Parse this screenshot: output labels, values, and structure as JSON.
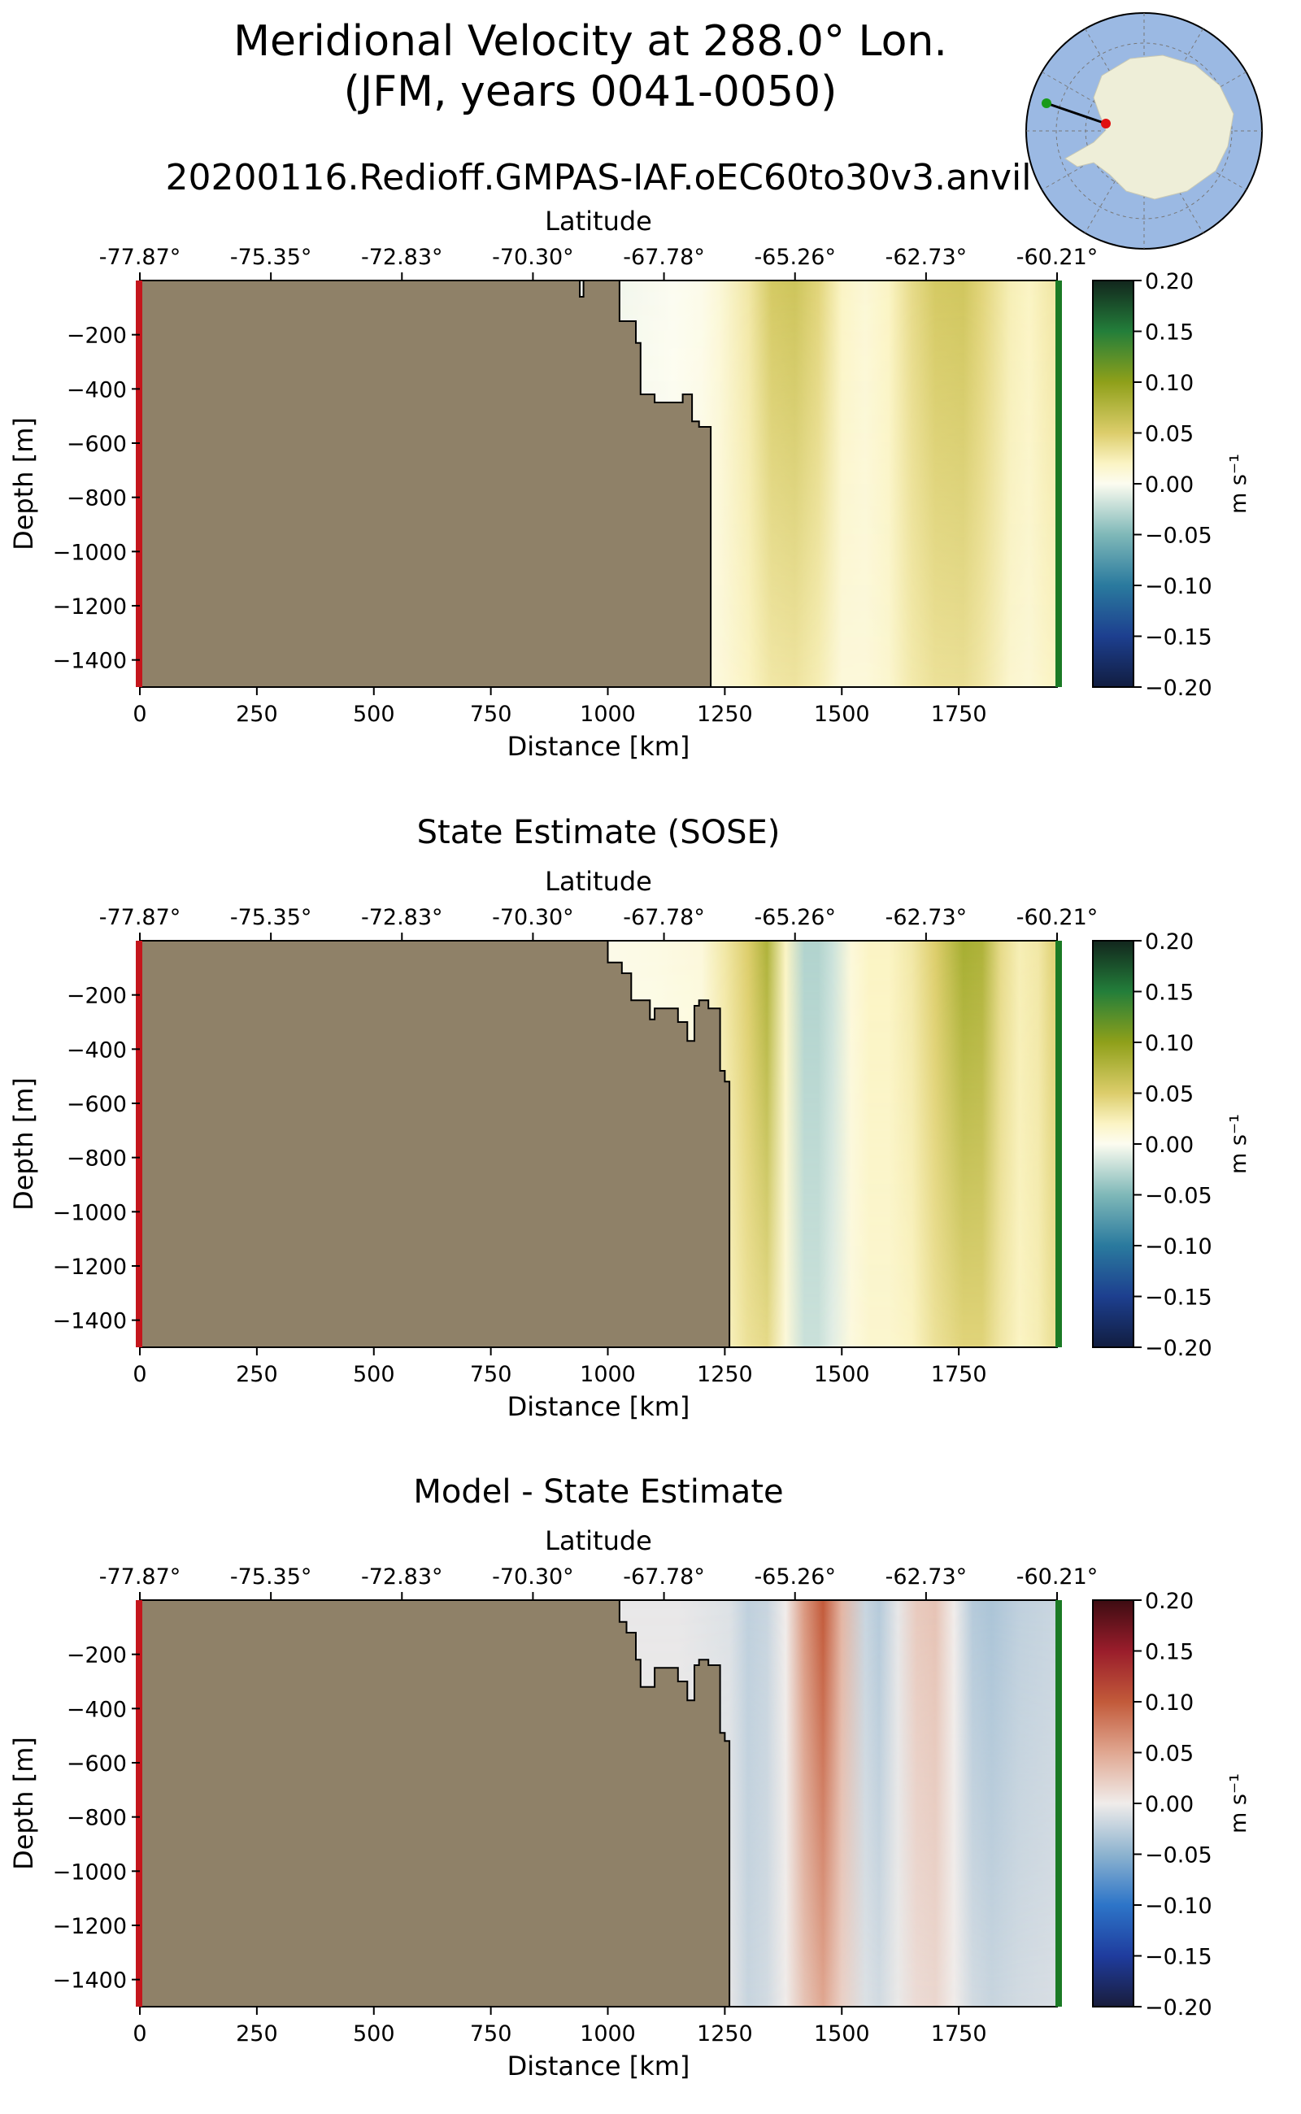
{
  "title_line1": "Meridional Velocity at 288.0° Lon.",
  "title_line2": "(JFM, years 0041-0050)",
  "run_name": "20200116.Redioff.GMPAS-IAF.oEC60to30v3.anvil",
  "inset_map": {
    "type": "polar-stereographic",
    "region": "Antarctica",
    "ocean_color": "#9bb9e3",
    "land_color": "#eeeed8",
    "transect_start_marker": "#1a9a1a",
    "transect_end_marker": "#e01010"
  },
  "chart_data": [
    {
      "type": "heatmap",
      "panel": "model",
      "title": "",
      "xlabel": "Distance [km]",
      "ylabel": "Depth [m]",
      "top_axis_label": "Latitude",
      "xlim": [
        0,
        1960
      ],
      "ylim": [
        -1500,
        0
      ],
      "xticks": [
        0,
        250,
        500,
        750,
        1000,
        1250,
        1500,
        1750
      ],
      "yticks": [
        -200,
        -400,
        -600,
        -800,
        -1000,
        -1200,
        -1400
      ],
      "top_ticks": [
        "-77.87°",
        "-75.35°",
        "-72.83°",
        "-70.30°",
        "-67.78°",
        "-65.26°",
        "-62.73°",
        "-60.21°"
      ],
      "top_tick_positions_km": [
        0,
        280,
        560,
        840,
        1120,
        1400,
        1680,
        1960
      ],
      "colorbar": {
        "label": "m s⁻¹",
        "min": -0.2,
        "max": 0.2,
        "ticks": [
          "0.20",
          "0.15",
          "0.10",
          "0.05",
          "0.00",
          "−0.05",
          "−0.10",
          "−0.15",
          "−0.20"
        ],
        "colormap": "delta"
      },
      "land_color": "#8f8168",
      "bathymetry": {
        "distance_km": [
          0,
          940,
          940,
          948,
          948,
          1025,
          1025,
          1060,
          1060,
          1070,
          1070,
          1100,
          1100,
          1160,
          1160,
          1180,
          1180,
          1195,
          1195,
          1220,
          1220
        ],
        "depth_m": [
          0,
          0,
          -60,
          -60,
          0,
          0,
          -150,
          -150,
          -230,
          -230,
          -420,
          -420,
          -450,
          -450,
          -420,
          -420,
          -520,
          -520,
          -540,
          -540,
          -1500
        ]
      },
      "velocity_profile": {
        "distance_km": [
          1030,
          1080,
          1140,
          1200,
          1240,
          1300,
          1350,
          1400,
          1450,
          1500,
          1550,
          1600,
          1650,
          1700,
          1760,
          1800,
          1860,
          1900,
          1950
        ],
        "surface_m_s": [
          -0.004,
          -0.002,
          0.0,
          0.003,
          0.012,
          0.03,
          0.055,
          0.06,
          0.045,
          0.02,
          0.012,
          0.02,
          0.04,
          0.055,
          0.058,
          0.045,
          0.025,
          0.02,
          0.03
        ],
        "deep_m_s": [
          0.0,
          0.0,
          0.0,
          0.005,
          0.01,
          0.02,
          0.03,
          0.032,
          0.025,
          0.01,
          0.01,
          0.015,
          0.028,
          0.035,
          0.036,
          0.03,
          0.015,
          0.012,
          0.02
        ]
      }
    },
    {
      "type": "heatmap",
      "panel": "sose",
      "title": "State Estimate (SOSE)",
      "xlabel": "Distance [km]",
      "ylabel": "Depth [m]",
      "top_axis_label": "Latitude",
      "xlim": [
        0,
        1960
      ],
      "ylim": [
        -1500,
        0
      ],
      "xticks": [
        0,
        250,
        500,
        750,
        1000,
        1250,
        1500,
        1750
      ],
      "yticks": [
        -200,
        -400,
        -600,
        -800,
        -1000,
        -1200,
        -1400
      ],
      "top_ticks": [
        "-77.87°",
        "-75.35°",
        "-72.83°",
        "-70.30°",
        "-67.78°",
        "-65.26°",
        "-62.73°",
        "-60.21°"
      ],
      "top_tick_positions_km": [
        0,
        280,
        560,
        840,
        1120,
        1400,
        1680,
        1960
      ],
      "colorbar": {
        "label": "m s⁻¹",
        "min": -0.2,
        "max": 0.2,
        "ticks": [
          "0.20",
          "0.15",
          "0.10",
          "0.05",
          "0.00",
          "−0.05",
          "−0.10",
          "−0.15",
          "−0.20"
        ],
        "colormap": "delta"
      },
      "land_color": "#8f8168",
      "bathymetry": {
        "distance_km": [
          0,
          1000,
          1000,
          1030,
          1030,
          1050,
          1050,
          1090,
          1090,
          1100,
          1100,
          1150,
          1150,
          1170,
          1170,
          1185,
          1185,
          1195,
          1195,
          1215,
          1215,
          1240,
          1240,
          1250,
          1250,
          1260,
          1260
        ],
        "depth_m": [
          0,
          0,
          -80,
          -80,
          -120,
          -120,
          -220,
          -220,
          -290,
          -290,
          -250,
          -250,
          -300,
          -300,
          -370,
          -370,
          -240,
          -240,
          -220,
          -220,
          -250,
          -250,
          -480,
          -480,
          -520,
          -520,
          -1500
        ]
      },
      "velocity_profile": {
        "distance_km": [
          1010,
          1100,
          1200,
          1250,
          1300,
          1340,
          1380,
          1420,
          1450,
          1480,
          1520,
          1560,
          1600,
          1650,
          1700,
          1760,
          1800,
          1840,
          1880,
          1920,
          1950
        ],
        "surface_m_s": [
          0.004,
          0.006,
          0.01,
          0.03,
          0.05,
          0.08,
          0.02,
          -0.03,
          -0.03,
          -0.02,
          0.01,
          0.02,
          0.02,
          0.03,
          0.05,
          0.085,
          0.08,
          0.04,
          0.025,
          0.03,
          0.045
        ],
        "deep_m_s": [
          0.0,
          0.0,
          0.0,
          0.02,
          0.035,
          0.04,
          0.01,
          -0.02,
          -0.02,
          -0.01,
          0.008,
          0.015,
          0.015,
          0.02,
          0.035,
          0.045,
          0.045,
          0.03,
          0.02,
          0.025,
          0.035
        ]
      }
    },
    {
      "type": "heatmap",
      "panel": "bias",
      "title": "Model - State Estimate",
      "xlabel": "Distance [km]",
      "ylabel": "Depth [m]",
      "top_axis_label": "Latitude",
      "xlim": [
        0,
        1960
      ],
      "ylim": [
        -1500,
        0
      ],
      "xticks": [
        0,
        250,
        500,
        750,
        1000,
        1250,
        1500,
        1750
      ],
      "yticks": [
        -200,
        -400,
        -600,
        -800,
        -1000,
        -1200,
        -1400
      ],
      "top_ticks": [
        "-77.87°",
        "-75.35°",
        "-72.83°",
        "-70.30°",
        "-67.78°",
        "-65.26°",
        "-62.73°",
        "-60.21°"
      ],
      "top_tick_positions_km": [
        0,
        280,
        560,
        840,
        1120,
        1400,
        1680,
        1960
      ],
      "colorbar": {
        "label": "m s⁻¹",
        "min": -0.2,
        "max": 0.2,
        "ticks": [
          "0.20",
          "0.15",
          "0.10",
          "0.05",
          "0.00",
          "−0.05",
          "−0.10",
          "−0.15",
          "−0.20"
        ],
        "colormap": "balance"
      },
      "land_color": "#8f8168",
      "bathymetry": {
        "distance_km": [
          0,
          1025,
          1025,
          1040,
          1040,
          1060,
          1060,
          1070,
          1070,
          1100,
          1100,
          1150,
          1150,
          1170,
          1170,
          1185,
          1185,
          1195,
          1195,
          1215,
          1215,
          1240,
          1240,
          1250,
          1250,
          1260,
          1260
        ],
        "depth_m": [
          0,
          0,
          -80,
          -80,
          -120,
          -120,
          -220,
          -220,
          -320,
          -320,
          -250,
          -250,
          -300,
          -300,
          -370,
          -370,
          -240,
          -240,
          -220,
          -220,
          -240,
          -240,
          -490,
          -490,
          -520,
          -520,
          -1500
        ]
      },
      "velocity_profile": {
        "distance_km": [
          1030,
          1150,
          1260,
          1300,
          1340,
          1380,
          1420,
          1460,
          1500,
          1550,
          1580,
          1620,
          1660,
          1700,
          1740,
          1780,
          1820,
          1880,
          1950
        ],
        "surface_m_s": [
          -0.004,
          -0.004,
          -0.01,
          -0.025,
          -0.02,
          0.0,
          0.06,
          0.1,
          0.04,
          -0.02,
          -0.03,
          -0.005,
          0.025,
          0.03,
          0.0,
          -0.03,
          -0.035,
          -0.025,
          -0.02
        ],
        "deep_m_s": [
          0.0,
          0.0,
          -0.005,
          -0.02,
          -0.015,
          0.0,
          0.03,
          0.05,
          0.02,
          -0.01,
          -0.015,
          -0.003,
          0.012,
          0.015,
          0.0,
          -0.015,
          -0.02,
          -0.015,
          -0.012
        ]
      }
    }
  ]
}
